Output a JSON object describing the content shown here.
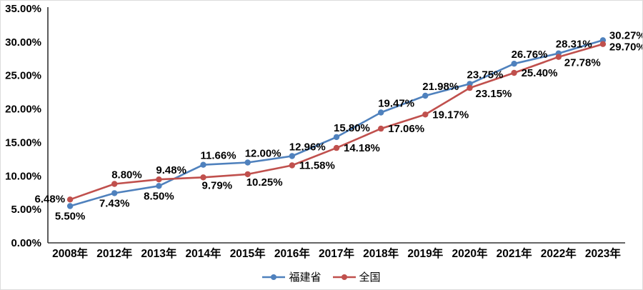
{
  "chart_data": {
    "type": "line",
    "title": "",
    "xlabel": "",
    "ylabel": "",
    "grid": false,
    "legend_position": "bottom",
    "categories": [
      "2008年",
      "2012年",
      "2013年",
      "2014年",
      "2015年",
      "2016年",
      "2017年",
      "2018年",
      "2019年",
      "2020年",
      "2021年",
      "2022年",
      "2023年"
    ],
    "y_axis": {
      "min": 0,
      "max": 35,
      "step": 5,
      "tick_labels": [
        "0.00%",
        "5.00%",
        "10.00%",
        "15.00%",
        "20.00%",
        "25.00%",
        "30.00%",
        "35.00%"
      ]
    },
    "series": [
      {
        "name": "福建省",
        "color": "#4F81BD",
        "values": [
          5.5,
          7.43,
          8.5,
          11.66,
          12.0,
          12.96,
          15.8,
          19.47,
          21.98,
          23.75,
          26.76,
          28.31,
          30.27
        ],
        "labels": [
          "5.50%",
          "7.43%",
          "8.50%",
          "11.66%",
          "12.00%",
          "12.96%",
          "15.80%",
          "19.47%",
          "21.98%",
          "23.75%",
          "26.76%",
          "28.31%",
          "30.27%"
        ],
        "label_positions": [
          "below-center",
          "below-center",
          "below-center",
          "above",
          "above",
          "above",
          "above",
          "above",
          "above",
          "above",
          "above",
          "above",
          "right-up"
        ]
      },
      {
        "name": "全国",
        "color": "#C0504D",
        "values": [
          6.48,
          8.8,
          9.48,
          9.79,
          10.25,
          11.58,
          14.18,
          17.06,
          19.17,
          23.15,
          25.4,
          27.78,
          29.7
        ],
        "labels": [
          "6.48%",
          "8.80%",
          "9.48%",
          "9.79%",
          "10.25%",
          "11.58%",
          "14.18%",
          "17.06%",
          "19.17%",
          "23.15%",
          "25.40%",
          "27.78%",
          "29.70%"
        ],
        "label_positions": [
          "left",
          "above",
          "above",
          "below",
          "below",
          "right",
          "right",
          "right",
          "right",
          "below-right",
          "right",
          "below-right",
          "right-down"
        ]
      }
    ],
    "axis_color": "#333333",
    "label_color": "#000000"
  }
}
